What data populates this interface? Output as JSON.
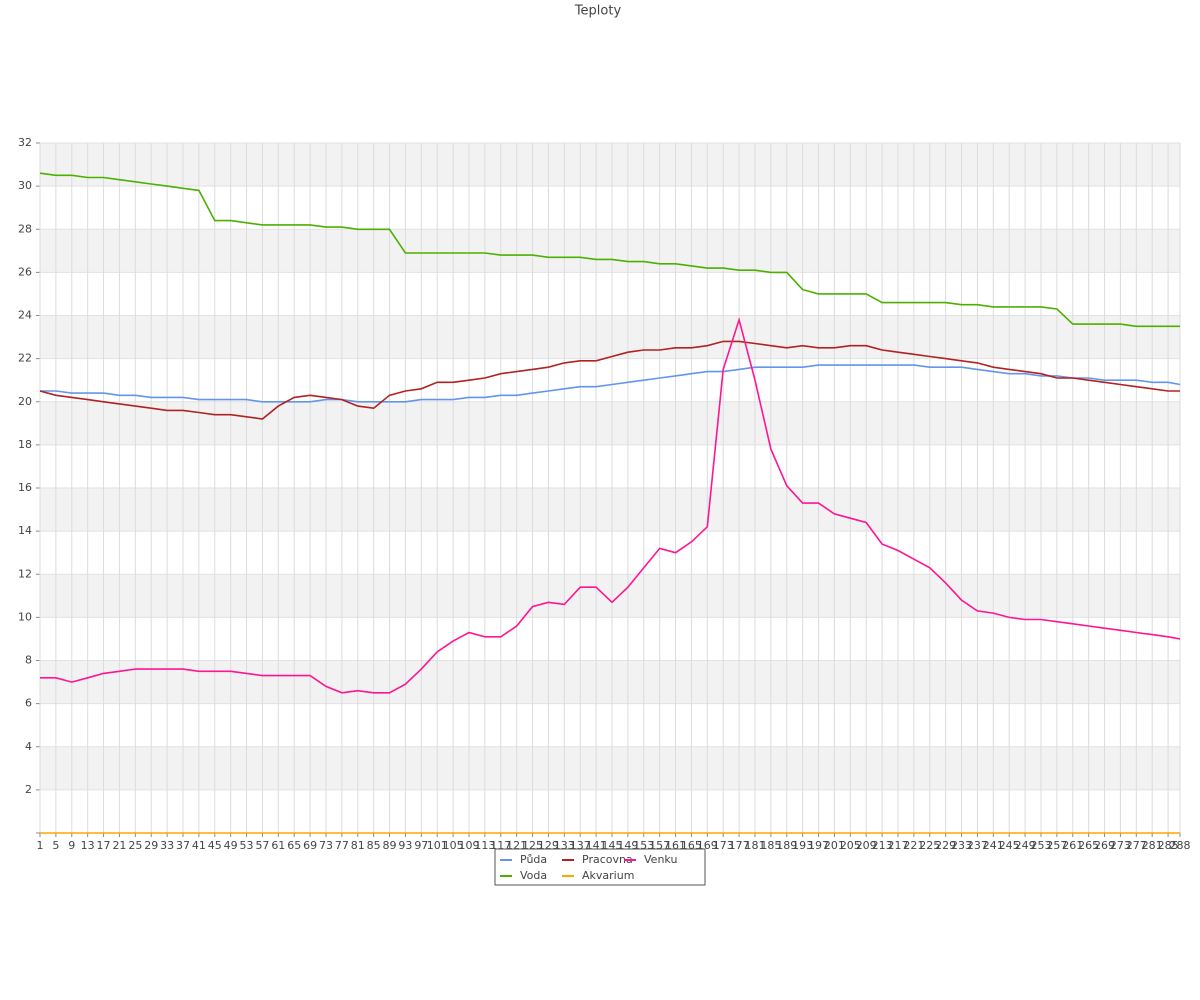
{
  "chart_data": {
    "type": "line",
    "title": "Teploty",
    "x": [
      1,
      5,
      9,
      13,
      17,
      21,
      25,
      29,
      33,
      37,
      41,
      45,
      49,
      53,
      57,
      61,
      65,
      69,
      73,
      77,
      81,
      85,
      89,
      93,
      97,
      101,
      105,
      109,
      113,
      117,
      121,
      125,
      129,
      133,
      137,
      141,
      145,
      149,
      153,
      157,
      161,
      165,
      169,
      173,
      177,
      181,
      185,
      189,
      193,
      197,
      201,
      205,
      209,
      213,
      217,
      221,
      225,
      229,
      233,
      237,
      241,
      245,
      249,
      253,
      257,
      261,
      265,
      269,
      273,
      277,
      281,
      285,
      288
    ],
    "xlim": [
      1,
      288
    ],
    "xticks": [
      1,
      5,
      9,
      13,
      17,
      21,
      25,
      29,
      33,
      37,
      41,
      45,
      49,
      53,
      57,
      61,
      65,
      69,
      73,
      77,
      81,
      85,
      89,
      93,
      97,
      101,
      105,
      109,
      113,
      117,
      121,
      125,
      129,
      133,
      137,
      141,
      145,
      149,
      153,
      157,
      161,
      165,
      169,
      173,
      177,
      181,
      185,
      189,
      193,
      197,
      201,
      205,
      209,
      213,
      217,
      221,
      225,
      229,
      233,
      237,
      241,
      245,
      249,
      253,
      257,
      261,
      265,
      269,
      273,
      277,
      281,
      285,
      288
    ],
    "ylim": [
      0,
      32
    ],
    "yticks": [
      2,
      4,
      6,
      8,
      10,
      12,
      14,
      16,
      18,
      20,
      22,
      24,
      26,
      28,
      30,
      32
    ],
    "grid": true,
    "series": [
      {
        "name": "Půda",
        "color": "#6495ed",
        "values": [
          20.5,
          20.5,
          20.4,
          20.4,
          20.4,
          20.3,
          20.3,
          20.2,
          20.2,
          20.2,
          20.1,
          20.1,
          20.1,
          20.1,
          20.0,
          20.0,
          20.0,
          20.0,
          20.1,
          20.1,
          20.0,
          20.0,
          20.0,
          20.0,
          20.1,
          20.1,
          20.1,
          20.2,
          20.2,
          20.3,
          20.3,
          20.4,
          20.5,
          20.6,
          20.7,
          20.7,
          20.8,
          20.9,
          21.0,
          21.1,
          21.2,
          21.3,
          21.4,
          21.4,
          21.5,
          21.6,
          21.6,
          21.6,
          21.6,
          21.7,
          21.7,
          21.7,
          21.7,
          21.7,
          21.7,
          21.7,
          21.6,
          21.6,
          21.6,
          21.5,
          21.4,
          21.3,
          21.3,
          21.2,
          21.2,
          21.1,
          21.1,
          21.0,
          21.0,
          21.0,
          20.9,
          20.9,
          20.8
        ]
      },
      {
        "name": "Pracovna",
        "color": "#b22222",
        "values": [
          20.5,
          20.3,
          20.2,
          20.1,
          20.0,
          19.9,
          19.8,
          19.7,
          19.6,
          19.6,
          19.5,
          19.4,
          19.4,
          19.3,
          19.2,
          19.8,
          20.2,
          20.3,
          20.2,
          20.1,
          19.8,
          19.7,
          20.3,
          20.5,
          20.6,
          20.9,
          20.9,
          21.0,
          21.1,
          21.3,
          21.4,
          21.5,
          21.6,
          21.8,
          21.9,
          21.9,
          22.1,
          22.3,
          22.4,
          22.4,
          22.5,
          22.5,
          22.6,
          22.8,
          22.8,
          22.7,
          22.6,
          22.5,
          22.6,
          22.5,
          22.5,
          22.6,
          22.6,
          22.4,
          22.3,
          22.2,
          22.1,
          22.0,
          21.9,
          21.8,
          21.6,
          21.5,
          21.4,
          21.3,
          21.1,
          21.1,
          21.0,
          20.9,
          20.8,
          20.7,
          20.6,
          20.5,
          20.5
        ]
      },
      {
        "name": "Venku",
        "color": "#ff1493",
        "values": [
          7.2,
          7.2,
          7.0,
          7.2,
          7.4,
          7.5,
          7.6,
          7.6,
          7.6,
          7.6,
          7.5,
          7.5,
          7.5,
          7.4,
          7.3,
          7.3,
          7.3,
          7.3,
          6.8,
          6.5,
          6.6,
          6.5,
          6.5,
          6.9,
          7.6,
          8.4,
          8.9,
          9.3,
          9.1,
          9.1,
          9.6,
          10.5,
          10.7,
          10.6,
          11.4,
          11.4,
          10.7,
          11.4,
          12.3,
          13.2,
          13.0,
          13.5,
          14.2,
          21.5,
          23.8,
          21.0,
          17.8,
          16.1,
          15.3,
          15.3,
          14.8,
          14.6,
          14.4,
          13.4,
          13.1,
          12.7,
          12.3,
          11.6,
          10.8,
          10.3,
          10.2,
          10.0,
          9.9,
          9.9,
          9.8,
          9.7,
          9.6,
          9.5,
          9.4,
          9.3,
          9.2,
          9.1,
          9.0
        ]
      },
      {
        "name": "Voda",
        "color": "#4cb000",
        "values": [
          30.6,
          30.5,
          30.5,
          30.4,
          30.4,
          30.3,
          30.2,
          30.1,
          30.0,
          29.9,
          29.8,
          28.4,
          28.4,
          28.3,
          28.2,
          28.2,
          28.2,
          28.2,
          28.1,
          28.1,
          28.0,
          28.0,
          28.0,
          26.9,
          26.9,
          26.9,
          26.9,
          26.9,
          26.9,
          26.8,
          26.8,
          26.8,
          26.7,
          26.7,
          26.7,
          26.6,
          26.6,
          26.5,
          26.5,
          26.4,
          26.4,
          26.3,
          26.2,
          26.2,
          26.1,
          26.1,
          26.0,
          26.0,
          25.2,
          25.0,
          25.0,
          25.0,
          25.0,
          24.6,
          24.6,
          24.6,
          24.6,
          24.6,
          24.5,
          24.5,
          24.4,
          24.4,
          24.4,
          24.4,
          24.3,
          23.6,
          23.6,
          23.6,
          23.6,
          23.5,
          23.5,
          23.5,
          23.5
        ]
      },
      {
        "name": "Akvarium",
        "color": "#ffa500",
        "values": [
          0,
          0,
          0,
          0,
          0,
          0,
          0,
          0,
          0,
          0,
          0,
          0,
          0,
          0,
          0,
          0,
          0,
          0,
          0,
          0,
          0,
          0,
          0,
          0,
          0,
          0,
          0,
          0,
          0,
          0,
          0,
          0,
          0,
          0,
          0,
          0,
          0,
          0,
          0,
          0,
          0,
          0,
          0,
          0,
          0,
          0,
          0,
          0,
          0,
          0,
          0,
          0,
          0,
          0,
          0,
          0,
          0,
          0,
          0,
          0,
          0,
          0,
          0,
          0,
          0,
          0,
          0,
          0,
          0,
          0,
          0,
          0,
          0
        ]
      }
    ]
  }
}
